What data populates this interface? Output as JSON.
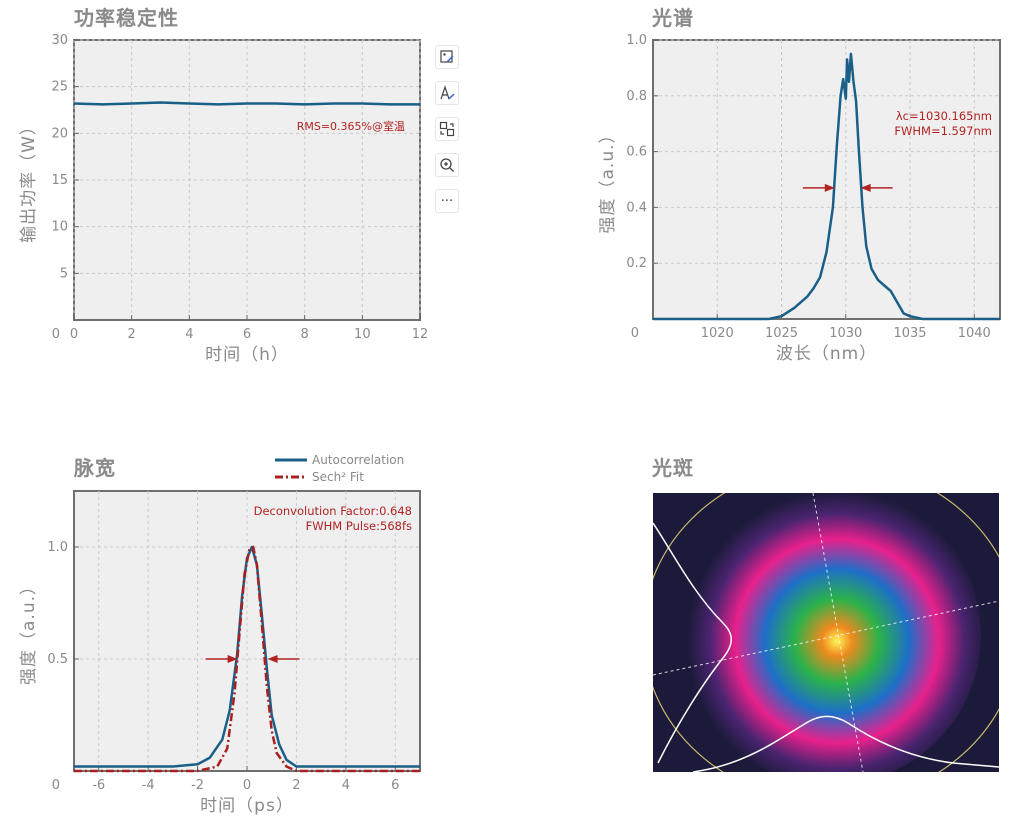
{
  "titles": {
    "power": "功率稳定性",
    "spectrum": "光谱",
    "pulse": "脉宽",
    "beam": "光斑"
  },
  "toolbar": {
    "buttons": [
      {
        "icon": "image-edit-icon"
      },
      {
        "icon": "text-edit-icon"
      },
      {
        "icon": "swap-icon"
      },
      {
        "icon": "zoom-in-icon"
      },
      {
        "icon": "more-icon",
        "label": "···"
      }
    ]
  },
  "chart_data": [
    {
      "id": "power",
      "type": "line",
      "title": "功率稳定性",
      "xlabel": "时间（h）",
      "ylabel": "输出功率（W）",
      "xlim": [
        0,
        12
      ],
      "ylim": [
        0,
        30
      ],
      "xticks": [
        0,
        2,
        4,
        6,
        8,
        10,
        12
      ],
      "yticks": [
        5,
        10,
        15,
        20,
        25,
        30
      ],
      "ytick_labels": [
        "5",
        "10",
        "15",
        "20",
        "25",
        "30"
      ],
      "grid": true,
      "line_color": "#1a5f87",
      "series": [
        {
          "x": [
            0,
            1,
            2,
            3,
            4,
            5,
            6,
            7,
            8,
            9,
            10,
            11,
            12
          ],
          "values": [
            23.2,
            23.1,
            23.2,
            23.3,
            23.2,
            23.1,
            23.2,
            23.2,
            23.1,
            23.2,
            23.2,
            23.1,
            23.1
          ]
        }
      ],
      "annotation": "RMS=0.365%@室温",
      "annotation_color": "#b22222"
    },
    {
      "id": "spectrum",
      "type": "line",
      "title": "光谱",
      "xlabel": "波长（nm）",
      "ylabel": "强度（a.u.）",
      "xlim": [
        1015,
        1042
      ],
      "ylim": [
        0,
        1.0
      ],
      "xticks": [
        1020,
        1025,
        1030,
        1035,
        1040
      ],
      "yticks": [
        0.2,
        0.4,
        0.6,
        0.8,
        1.0
      ],
      "ytick_labels": [
        "0.2",
        "0.4",
        "0.6",
        "0.8",
        "1.0"
      ],
      "grid": true,
      "line_color": "#1a5f87",
      "series": [
        {
          "x": [
            1015,
            1024,
            1025,
            1026,
            1027,
            1027.5,
            1028,
            1028.5,
            1029,
            1029.3,
            1029.6,
            1029.8,
            1030.0,
            1030.1,
            1030.25,
            1030.4,
            1030.6,
            1030.8,
            1031.0,
            1031.3,
            1031.6,
            1032.0,
            1032.5,
            1033.0,
            1033.5,
            1034.0,
            1034.5,
            1035.0,
            1036.0,
            1037.0,
            1042
          ],
          "values": [
            0,
            0,
            0.01,
            0.04,
            0.08,
            0.11,
            0.15,
            0.24,
            0.4,
            0.62,
            0.8,
            0.86,
            0.79,
            0.93,
            0.85,
            0.95,
            0.85,
            0.78,
            0.62,
            0.4,
            0.26,
            0.18,
            0.14,
            0.12,
            0.1,
            0.06,
            0.02,
            0.01,
            0,
            0,
            0
          ]
        }
      ],
      "annotation": [
        "λc=1030.165nm",
        "FWHM=1.597nm"
      ],
      "annotation_color": "#b22222",
      "fwhm_arrows": {
        "level": 0.47,
        "left": 1029.3,
        "right": 1031.0
      }
    },
    {
      "id": "pulse",
      "type": "line",
      "title": "脉宽",
      "xlabel": "时间（ps）",
      "ylabel": "强度（a.u.）",
      "xlim": [
        -7,
        7
      ],
      "ylim": [
        0,
        1.25
      ],
      "xticks": [
        -6,
        -4,
        -2,
        0,
        2,
        4,
        6
      ],
      "yticks": [
        0.5,
        1.0
      ],
      "ytick_labels": [
        "0.5",
        "1.0"
      ],
      "grid": true,
      "legend": {
        "placement": "top-right-outside"
      },
      "series": [
        {
          "name": "Autocorrelation",
          "color": "#1a5f87",
          "dash": false,
          "x": [
            -7,
            -3,
            -2,
            -1.5,
            -1,
            -0.7,
            -0.4,
            -0.2,
            0,
            0.2,
            0.4,
            0.6,
            0.8,
            1.0,
            1.3,
            1.6,
            2,
            3,
            7
          ],
          "values": [
            0.02,
            0.02,
            0.03,
            0.06,
            0.14,
            0.27,
            0.52,
            0.78,
            0.95,
            1.0,
            0.92,
            0.7,
            0.46,
            0.25,
            0.12,
            0.05,
            0.02,
            0.02,
            0.02
          ]
        },
        {
          "name": "Sech² Fit",
          "color": "#a82020",
          "dash": true,
          "x": [
            -7,
            -2,
            -1.2,
            -0.8,
            -0.5,
            -0.3,
            -0.1,
            0.1,
            0.25,
            0.4,
            0.6,
            0.8,
            1.0,
            1.2,
            1.6,
            2,
            7
          ],
          "values": [
            0,
            0,
            0.02,
            0.1,
            0.35,
            0.62,
            0.88,
            0.99,
            1.0,
            0.92,
            0.66,
            0.38,
            0.18,
            0.08,
            0.02,
            0,
            0
          ]
        }
      ],
      "annotation": [
        "Deconvolution Factor:0.648",
        "FWHM Pulse:568fs"
      ],
      "annotation_color": "#b22222",
      "fwhm_arrows": {
        "level": 0.5,
        "left": -0.3,
        "right": 0.75
      }
    }
  ],
  "beam_colors": [
    "#fef45a",
    "#f08a1e",
    "#2bb24a",
    "#1e6fc8",
    "#e8208c",
    "#4a2470",
    "#1c1a3a"
  ]
}
